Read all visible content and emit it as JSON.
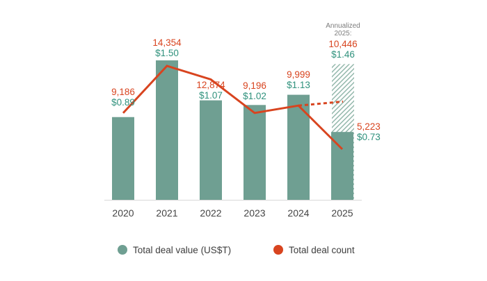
{
  "chart_data": {
    "type": "bar",
    "subtype": "bar-line-combo",
    "title": "",
    "categories": [
      "2020",
      "2021",
      "2022",
      "2023",
      "2024",
      "2025"
    ],
    "series": [
      {
        "name": "Total deal value (US$T)",
        "type": "bar",
        "color": "#6f9f92",
        "unit": "US$T",
        "values": [
          0.89,
          1.5,
          1.07,
          1.02,
          1.13,
          0.73
        ],
        "labels": [
          "$0.89",
          "$1.50",
          "$1.07",
          "$1.02",
          "$1.13",
          "$0.73"
        ]
      },
      {
        "name": "Total deal count",
        "type": "line",
        "color": "#d8441f",
        "unit": "deals",
        "values": [
          9186,
          14354,
          12874,
          9196,
          9999,
          5223
        ],
        "labels": [
          "9,186",
          "14,354",
          "12,874",
          "9,196",
          "9,999",
          "5,223"
        ]
      }
    ],
    "annualized_2025": {
      "heading_lines": [
        "Annualized",
        "2025:"
      ],
      "count": 10446,
      "count_label": "10,446",
      "value": 1.46,
      "value_label": "$1.46",
      "bar_style": "hatched",
      "line_style": "dashed"
    },
    "legend": [
      {
        "label": "Total deal value (US$T)",
        "color": "#6f9f92"
      },
      {
        "label": "Total deal count",
        "color": "#d8441f"
      }
    ],
    "legend_position": "bottom",
    "grid": false,
    "axis": {
      "x_ticks": [
        "2020",
        "2021",
        "2022",
        "2023",
        "2024",
        "2025"
      ],
      "baseline_shown": true
    }
  },
  "colors": {
    "bar_fill": "#6f9f92",
    "line_stroke": "#d8441f",
    "count_label_text": "#d8441f",
    "value_label_text": "#2f917c",
    "annualized_heading_text": "#7c7c7c",
    "axis_text": "#444444",
    "axis_line": "#d8d8d8",
    "hatch_line": "#8bb2a5",
    "background": "#ffffff"
  }
}
